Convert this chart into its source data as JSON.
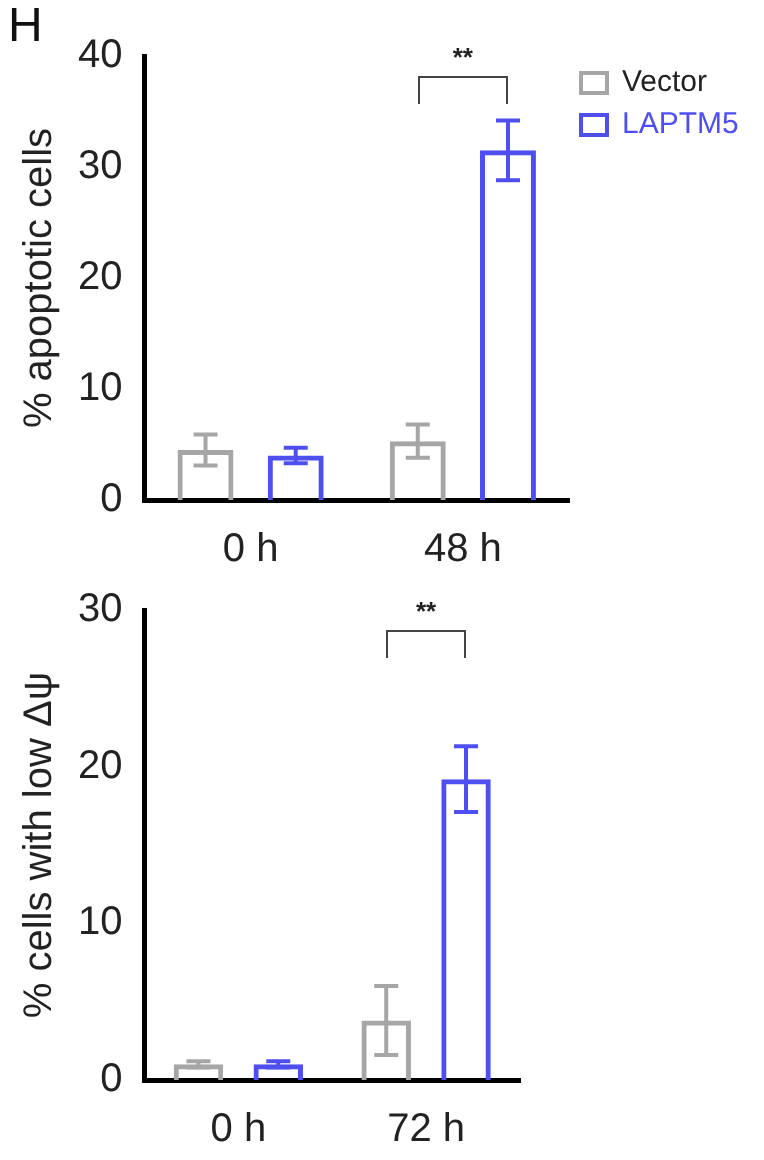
{
  "chart_data": [
    {
      "type": "bar",
      "categories": [
        "0 h",
        "48 h"
      ],
      "ylabel": "% apoptotic cells",
      "ylim": [
        0,
        40
      ],
      "yticks": [
        0,
        10,
        20,
        30,
        40
      ],
      "grid": false,
      "legend": "right",
      "series": [
        {
          "name": "Vector",
          "color": "#a6a6a6",
          "values": [
            4.5,
            5.3
          ],
          "errors": [
            1.4,
            1.5
          ]
        },
        {
          "name": "LAPTM5",
          "color": "#4f4ff0",
          "values": [
            4.0,
            31.5
          ],
          "errors": [
            0.7,
            2.7
          ]
        }
      ],
      "annotations": [
        "H",
        "**"
      ]
    },
    {
      "type": "bar",
      "categories": [
        "0 h",
        "72 h"
      ],
      "ylabel": "% cells with low Δψ",
      "ylim": [
        0,
        30
      ],
      "yticks": [
        0,
        10,
        20,
        30
      ],
      "grid": false,
      "legend": false,
      "series": [
        {
          "color": "#a6a6a6",
          "values": [
            1.0,
            3.8
          ],
          "errors": [
            0.2,
            2.2
          ]
        },
        {
          "color": "#4f4ff0",
          "values": [
            1.0,
            19.2
          ],
          "errors": [
            0.2,
            2.1
          ]
        }
      ],
      "annotations": [
        "**"
      ]
    }
  ]
}
